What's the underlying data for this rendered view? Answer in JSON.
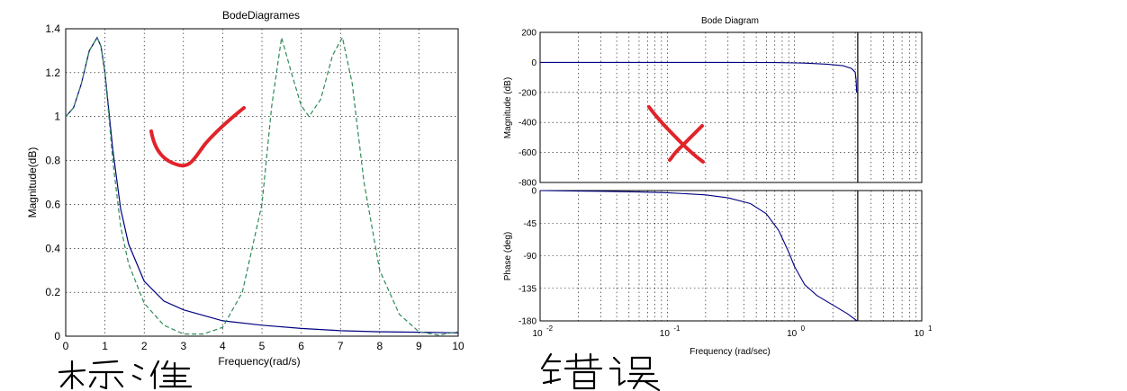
{
  "chart_data": [
    {
      "type": "line",
      "title": "BodeDiagrames",
      "xlabel": "Frequency(rad/s)",
      "ylabel": "Magnitude(dB)",
      "xlim": [
        0,
        10
      ],
      "ylim": [
        0,
        1.4
      ],
      "xticks": [
        0,
        1,
        2,
        3,
        4,
        5,
        6,
        7,
        8,
        9,
        10
      ],
      "yticks": [
        0,
        0.2,
        0.4,
        0.6,
        0.8,
        1,
        1.2,
        1.4
      ],
      "grid": true,
      "series": [
        {
          "style": "solid",
          "color": "#000080",
          "x": [
            0,
            0.2,
            0.4,
            0.6,
            0.8,
            0.9,
            1.0,
            1.2,
            1.4,
            1.6,
            2.0,
            2.5,
            3.0,
            4.0,
            5.0,
            6.0,
            7.0,
            8.0,
            9.0,
            10.0
          ],
          "y": [
            1.0,
            1.04,
            1.15,
            1.3,
            1.36,
            1.32,
            1.2,
            0.85,
            0.58,
            0.42,
            0.25,
            0.16,
            0.12,
            0.07,
            0.05,
            0.035,
            0.025,
            0.02,
            0.018,
            0.015
          ]
        },
        {
          "style": "dashed",
          "color": "#2e8b57",
          "x": [
            0,
            0.2,
            0.4,
            0.6,
            0.8,
            0.9,
            1.0,
            1.2,
            1.4,
            1.6,
            2.0,
            2.5,
            3.0,
            3.5,
            4.0,
            4.5,
            5.0,
            5.25,
            5.5,
            5.75,
            6.0,
            6.2,
            6.5,
            6.8,
            7.05,
            7.3,
            7.6,
            8.0,
            8.5,
            9.0,
            9.5,
            10.0
          ],
          "y": [
            1.0,
            1.04,
            1.15,
            1.3,
            1.36,
            1.32,
            1.2,
            0.8,
            0.5,
            0.33,
            0.15,
            0.05,
            0.01,
            0.01,
            0.04,
            0.2,
            0.6,
            1.05,
            1.36,
            1.2,
            1.05,
            1.0,
            1.08,
            1.28,
            1.36,
            1.15,
            0.7,
            0.3,
            0.1,
            0.02,
            0.005,
            0.02
          ]
        }
      ]
    },
    {
      "type": "line",
      "title": "Bode Diagram",
      "xlabel": "Frequency  (rad/sec)",
      "panels": [
        {
          "ylabel": "Magnitude (dB)",
          "xscale": "log",
          "xlim": [
            0.01,
            10
          ],
          "ylim": [
            -800,
            200
          ],
          "yticks": [
            200,
            0,
            -200,
            -400,
            -600,
            -800
          ],
          "grid": true,
          "series": [
            {
              "color": "#000080",
              "x": [
                0.01,
                0.1,
                0.3,
                0.7,
                1.2,
                1.8,
                2.4,
                2.8,
                3.0,
                3.05,
                3.08
              ],
              "y": [
                0,
                0,
                0,
                -1,
                -5,
                -12,
                -22,
                -40,
                -65,
                -120,
                -200
              ]
            }
          ],
          "vertical_line_at": 3.14
        },
        {
          "ylabel": "Phase (deg)",
          "xscale": "log",
          "xlim": [
            0.01,
            10
          ],
          "ylim": [
            -180,
            0
          ],
          "yticks": [
            0,
            -45,
            -90,
            -135,
            -180
          ],
          "xtick_labels": [
            "10",
            "10",
            "10",
            "10"
          ],
          "xtick_exponents": [
            "-2",
            "-1",
            "0",
            "1"
          ],
          "grid": true,
          "series": [
            {
              "color": "#000080",
              "x": [
                0.01,
                0.03,
                0.06,
                0.1,
                0.2,
                0.3,
                0.45,
                0.6,
                0.75,
                0.9,
                1.0,
                1.2,
                1.5,
                2.0,
                2.6,
                3.1
              ],
              "y": [
                0,
                -1,
                -2,
                -3,
                -6,
                -10,
                -18,
                -32,
                -55,
                -85,
                -105,
                -130,
                -145,
                -158,
                -170,
                -180
              ]
            }
          ],
          "vertical_line_at": 3.14
        }
      ]
    }
  ]
}
